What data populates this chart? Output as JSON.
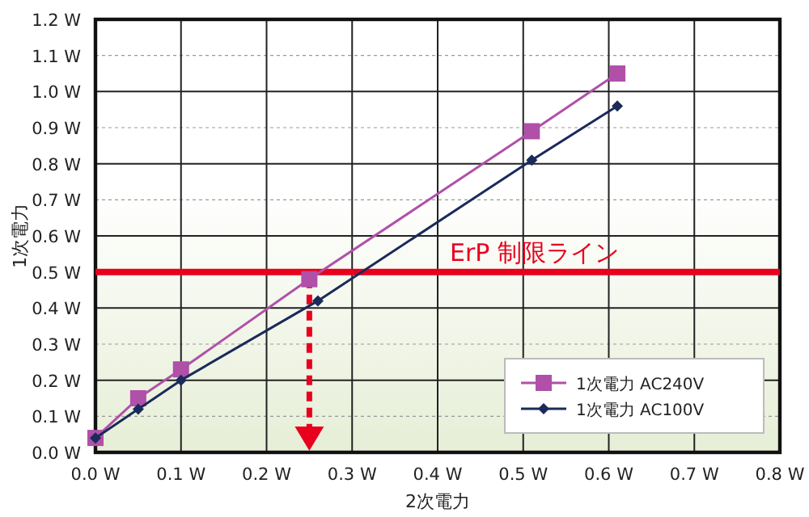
{
  "chart_data": {
    "type": "line",
    "xlabel": "2次電力",
    "ylabel": "1次電力",
    "xlim": [
      0,
      0.8
    ],
    "ylim": [
      0,
      1.2
    ],
    "xticks": [
      {
        "value": 0,
        "label": "0.0 W"
      },
      {
        "value": 0.1,
        "label": "0.1 W"
      },
      {
        "value": 0.2,
        "label": "0.2 W"
      },
      {
        "value": 0.3,
        "label": "0.3 W"
      },
      {
        "value": 0.4,
        "label": "0.4 W"
      },
      {
        "value": 0.5,
        "label": "0.5 W"
      },
      {
        "value": 0.6,
        "label": "0.6 W"
      },
      {
        "value": 0.7,
        "label": "0.7 W"
      },
      {
        "value": 0.8,
        "label": "0.8 W"
      }
    ],
    "yticks": [
      {
        "value": 0,
        "label": "0.0 W"
      },
      {
        "value": 0.1,
        "label": "0.1 W"
      },
      {
        "value": 0.2,
        "label": "0.2 W"
      },
      {
        "value": 0.3,
        "label": "0.3 W"
      },
      {
        "value": 0.4,
        "label": "0.4 W"
      },
      {
        "value": 0.5,
        "label": "0.5 W"
      },
      {
        "value": 0.6,
        "label": "0.6 W"
      },
      {
        "value": 0.7,
        "label": "0.7 W"
      },
      {
        "value": 0.8,
        "label": "0.8 W"
      },
      {
        "value": 0.9,
        "label": "0.9 W"
      },
      {
        "value": 1.0,
        "label": "1.0 W"
      },
      {
        "value": 1.1,
        "label": "1.1 W"
      },
      {
        "value": 1.2,
        "label": "1.2 W"
      }
    ],
    "grid": true,
    "legend": "bottom right",
    "series": [
      {
        "name": "1次電力 AC240V",
        "color": "#b050a8",
        "marker": "square",
        "x": [
          0,
          0.05,
          0.1,
          0.25,
          0.51,
          0.61
        ],
        "values": [
          0.04,
          0.15,
          0.23,
          0.48,
          0.89,
          1.05
        ]
      },
      {
        "name": "1次電力 AC100V",
        "color": "#1a2a5a",
        "marker": "diamond",
        "x": [
          0,
          0.05,
          0.1,
          0.26,
          0.51,
          0.61
        ],
        "values": [
          0.04,
          0.12,
          0.2,
          0.42,
          0.81,
          0.96
        ]
      }
    ],
    "ref_lines": [
      {
        "axis": "y",
        "value": 0.5,
        "label": "ErP 制限ライン",
        "color": "#e8001c"
      },
      {
        "axis": "x",
        "value": 0.25,
        "color": "#e8001c",
        "line_style": "dashed"
      }
    ]
  }
}
